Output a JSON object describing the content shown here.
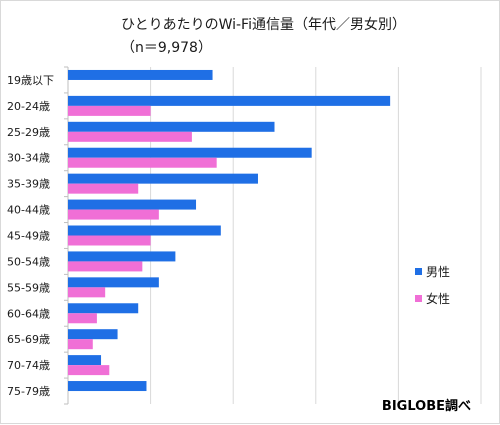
{
  "chart_data": {
    "type": "bar",
    "orientation": "horizontal",
    "title": "ひとりあたりのWi-Fi通信量（年代／男女別）",
    "subtitle": "（n＝9,978）",
    "categories": [
      "19歳以下",
      "20-24歳",
      "25-29歳",
      "30-34歳",
      "35-39歳",
      "40-44歳",
      "45-49歳",
      "50-54歳",
      "55-59歳",
      "60-64歳",
      "65-69歳",
      "70-74歳",
      "75-79歳"
    ],
    "series": [
      {
        "name": "男性",
        "color": "#1f6fe5",
        "values": [
          35,
          78,
          50,
          59,
          46,
          31,
          37,
          26,
          22,
          17,
          12,
          8,
          19
        ]
      },
      {
        "name": "女性",
        "color": "#f06fd6",
        "values": [
          null,
          20,
          30,
          36,
          17,
          22,
          20,
          18,
          9,
          7,
          6,
          10,
          null
        ]
      }
    ],
    "xlim": [
      0,
      100
    ],
    "grid": true,
    "xticks_labeled": false,
    "legend_position": "right",
    "credit": "BIGLOBE調べ"
  }
}
